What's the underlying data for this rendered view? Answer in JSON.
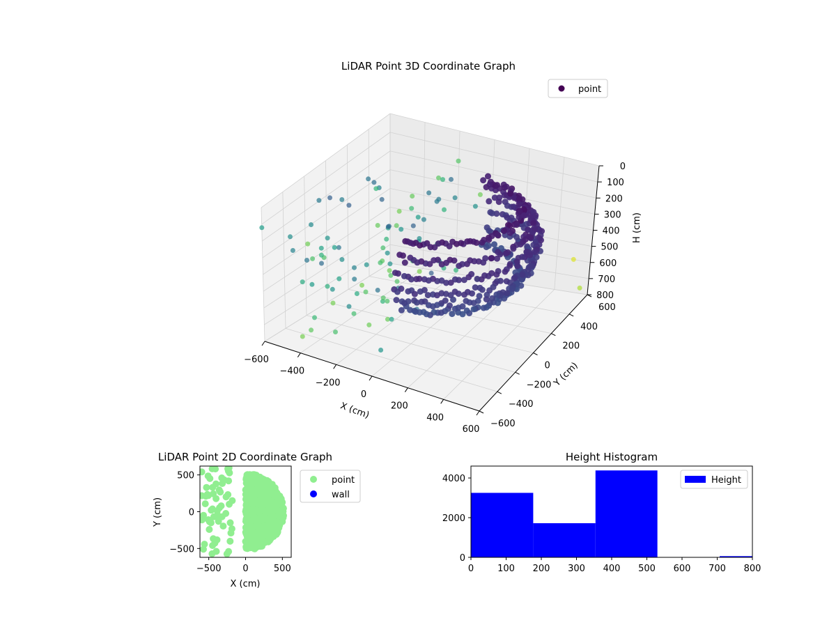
{
  "chart_data": [
    {
      "type": "scatter",
      "title": "LiDAR Point 3D Coordinate Graph",
      "xlabel": "X (cm)",
      "ylabel": "Y (cm)",
      "zlabel": "H (cm)",
      "x_ticks": [
        "−600",
        "−400",
        "−200",
        "0",
        "200",
        "400",
        "600"
      ],
      "y_ticks": [
        "−600",
        "−400",
        "−200",
        "0",
        "200",
        "400",
        "600"
      ],
      "z_ticks": [
        "0",
        "100",
        "200",
        "300",
        "400",
        "500",
        "600",
        "700",
        "800"
      ],
      "legend": "point",
      "colormap": "viridis",
      "series": [
        {
          "name": "point",
          "description_of_shape": "dense semicircular dome of points, radius ~500 cm, heights 0-500 cm, plus sparse outliers",
          "sample_points": [
            {
              "x": -600,
              "y": -600,
              "h": 120,
              "c": 0.55
            },
            {
              "x": -520,
              "y": -450,
              "h": 300,
              "c": 0.45
            },
            {
              "x": -450,
              "y": -300,
              "h": 420,
              "c": 0.35
            },
            {
              "x": -400,
              "y": 200,
              "h": 600,
              "c": 0.75
            },
            {
              "x": -300,
              "y": 400,
              "h": 720,
              "c": 0.8
            },
            {
              "x": 500,
              "y": 600,
              "h": 600,
              "c": 0.95
            },
            {
              "x": 600,
              "y": 500,
              "h": 700,
              "c": 0.88
            },
            {
              "x": -200,
              "y": 600,
              "h": 780,
              "c": 0.65
            }
          ]
        }
      ],
      "xlim": [
        -600,
        600
      ],
      "ylim": [
        -600,
        600
      ],
      "zlim": [
        0,
        800
      ]
    },
    {
      "type": "scatter",
      "title": "LiDAR Point 2D Coordinate Graph",
      "xlabel": "X (cm)",
      "ylabel": "Y (cm)",
      "x_ticks": [
        "−500",
        "0",
        "500"
      ],
      "y_ticks": [
        "−500",
        "0",
        "500"
      ],
      "xlim": [
        -620,
        620
      ],
      "ylim": [
        -620,
        620
      ],
      "legend": [
        {
          "label": "point",
          "color": "#90ee90"
        },
        {
          "label": "wall",
          "color": "#0000ff"
        }
      ]
    },
    {
      "type": "bar",
      "title": "Height Histogram",
      "x_ticks": [
        "0",
        "100",
        "200",
        "300",
        "400",
        "500",
        "600",
        "700",
        "800"
      ],
      "y_ticks": [
        "0",
        "2000",
        "4000"
      ],
      "xlim": [
        0,
        800
      ],
      "ylim": [
        0,
        4600
      ],
      "legend": "Height",
      "color": "#0000ff",
      "bins": [
        {
          "from": 0,
          "to": 177,
          "count": 3250
        },
        {
          "from": 177,
          "to": 354,
          "count": 1720
        },
        {
          "from": 354,
          "to": 530,
          "count": 4380
        },
        {
          "from": 530,
          "to": 707,
          "count": 15
        },
        {
          "from": 707,
          "to": 800,
          "count": 60
        }
      ]
    }
  ]
}
